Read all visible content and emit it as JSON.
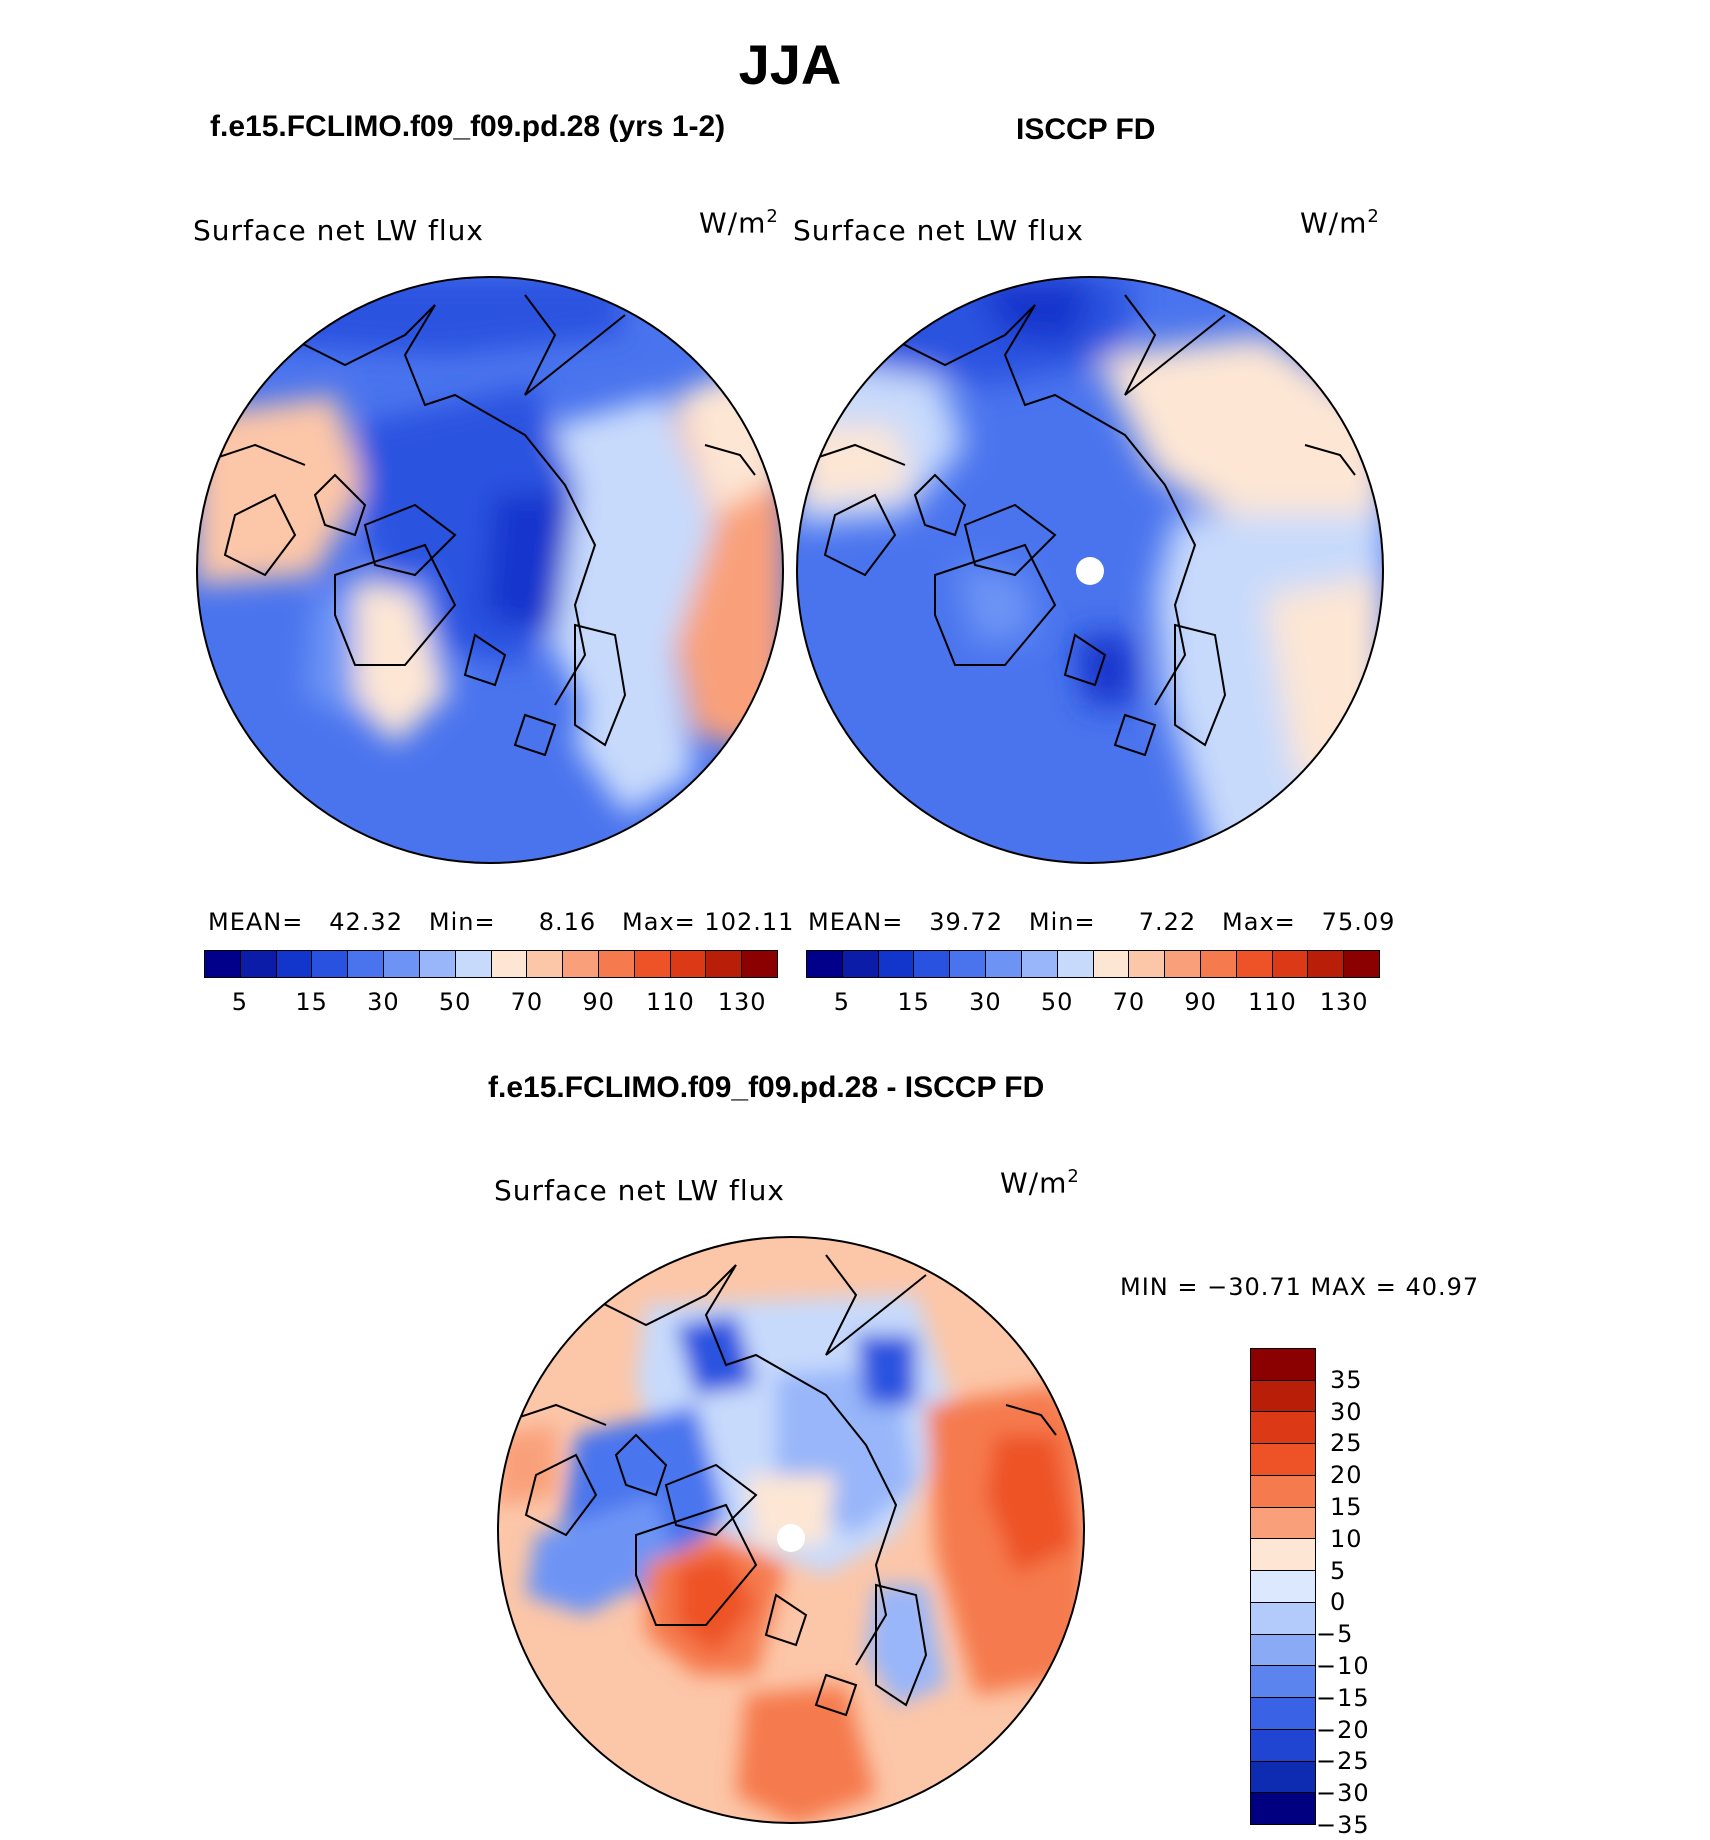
{
  "title": "JJA",
  "panels": {
    "model": {
      "title": "f.e15.FCLIMO.f09_f09.pd.28 (yrs 1-2)",
      "variable": "Surface net LW flux",
      "units_base": "W/m",
      "units_exp": "2",
      "stats": {
        "mean_label": "MEAN=",
        "mean_value": "42.32",
        "min_label": "Min=",
        "min_value": "8.16",
        "max_label": "Max=",
        "max_value": "102.11"
      }
    },
    "obs": {
      "title": "ISCCP FD",
      "variable": "Surface net LW flux",
      "units_base": "W/m",
      "units_exp": "2",
      "stats": {
        "mean_label": "MEAN=",
        "mean_value": "39.72",
        "min_label": "Min=",
        "min_value": "7.22",
        "max_label": "Max=",
        "max_value": "75.09"
      }
    },
    "diff": {
      "title": "f.e15.FCLIMO.f09_f09.pd.28 - ISCCP FD",
      "variable": "Surface net LW flux",
      "units_base": "W/m",
      "units_exp": "2",
      "minmax": "MIN = −30.71 MAX =   40.97"
    }
  },
  "colorbar_top": {
    "colors": [
      "#00008b",
      "#0a1ca8",
      "#1236cc",
      "#2a52e0",
      "#4a74ee",
      "#6d94f5",
      "#98b6f9",
      "#c7dafc",
      "#fde6d4",
      "#fcc6a8",
      "#f9a07a",
      "#f57a4e",
      "#ee5327",
      "#dc3a16",
      "#b91e08",
      "#8b0000"
    ],
    "ticks": [
      "5",
      "15",
      "30",
      "50",
      "70",
      "90",
      "110",
      "130"
    ]
  },
  "colorbar_diff": {
    "colors": [
      "#8b0000",
      "#b91e08",
      "#dc3a16",
      "#ee5327",
      "#f57a4e",
      "#f9a07a",
      "#fde6d4",
      "#dbe8fd",
      "#b3cbfa",
      "#8aaaf5",
      "#5c84ee",
      "#3a62e4",
      "#1f45d2",
      "#0e2cb2",
      "#000080"
    ],
    "ticks": [
      "35",
      "30",
      "25",
      "20",
      "15",
      "10",
      "5",
      "0",
      "−5",
      "−10",
      "−15",
      "−20",
      "−25",
      "−30",
      "−35"
    ]
  }
}
